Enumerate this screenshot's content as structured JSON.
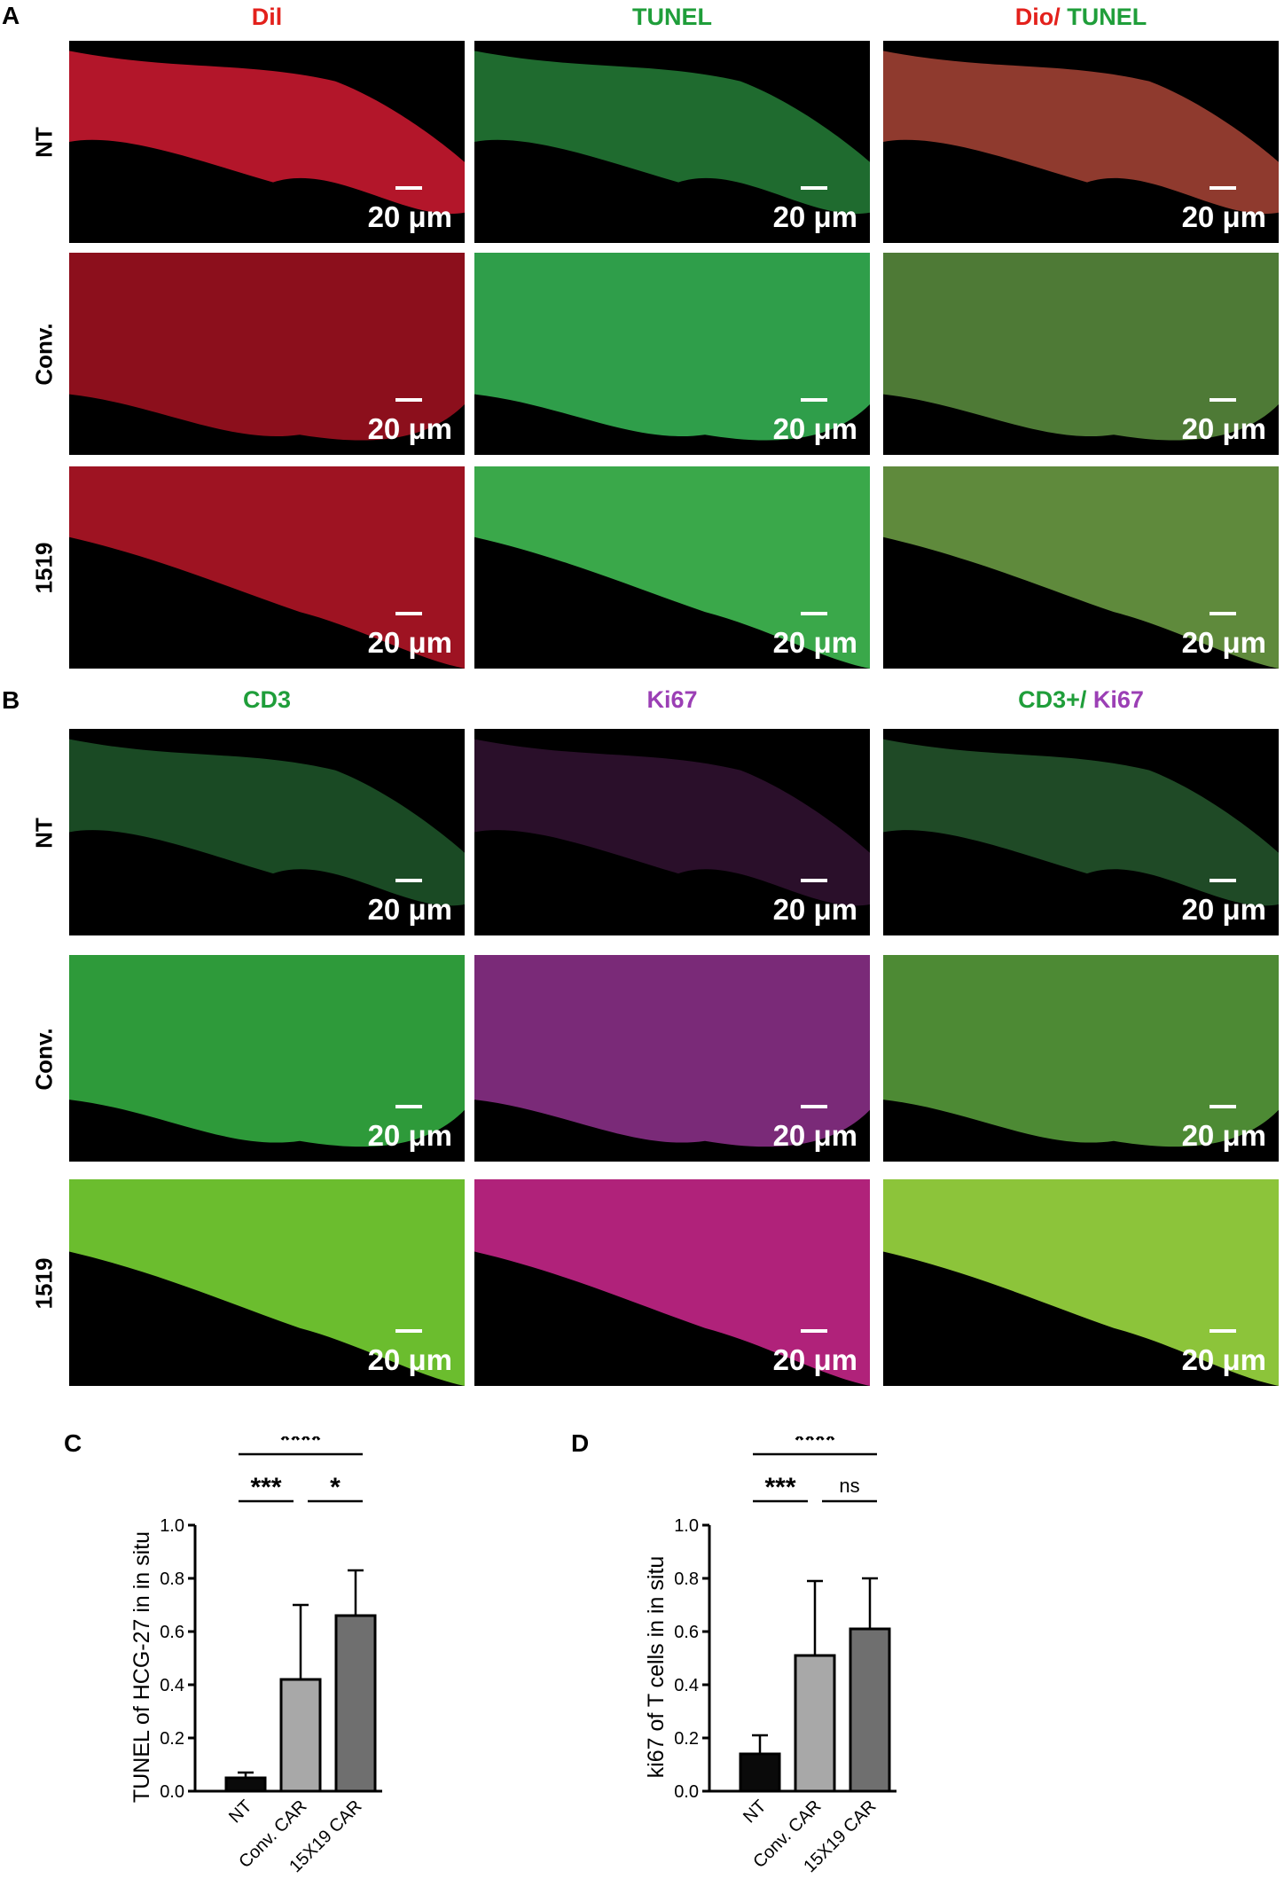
{
  "panel_a": {
    "letter": "A",
    "columns": [
      {
        "segments": [
          {
            "text": "Dil",
            "color": "#e3211c"
          }
        ]
      },
      {
        "segments": [
          {
            "text": "TUNEL",
            "color": "#1f9e3a"
          }
        ]
      },
      {
        "segments": [
          {
            "text": "Dio/ ",
            "color": "#e3211c"
          },
          {
            "text": "TUNEL",
            "color": "#1f9e3a"
          }
        ]
      }
    ],
    "rows": [
      "NT",
      "Conv.",
      "1519"
    ],
    "scale_label": "20 μm"
  },
  "panel_b": {
    "letter": "B",
    "columns": [
      {
        "segments": [
          {
            "text": "CD3",
            "color": "#1f9e3a"
          }
        ]
      },
      {
        "segments": [
          {
            "text": "Ki67",
            "color": "#9b3fb5"
          }
        ]
      },
      {
        "segments": [
          {
            "text": "CD3+/ ",
            "color": "#1f9e3a"
          },
          {
            "text": "Ki67",
            "color": "#9b3fb5"
          }
        ]
      }
    ],
    "rows": [
      "NT",
      "Conv.",
      "1519"
    ],
    "scale_label": "20 μm"
  },
  "chart_data": [
    {
      "panel": "C",
      "type": "bar",
      "categories": [
        "NT",
        "Conv. CAR",
        "15X19 CAR"
      ],
      "values": [
        0.05,
        0.42,
        0.66
      ],
      "errors": [
        0.02,
        0.28,
        0.17
      ],
      "bar_colors": [
        "#0a0a0a",
        "#a8a8a8",
        "#6f6f6f"
      ],
      "ylabel": "TUNEL of HCG-27 in  in situ",
      "ylim": [
        0,
        1.0
      ],
      "yticks": [
        "0.0",
        "0.2",
        "0.4",
        "0.6",
        "0.8",
        "1.0"
      ],
      "comparisons": [
        {
          "from": 1,
          "to": 2,
          "label": "*",
          "level": 0
        },
        {
          "from": 0,
          "to": 1,
          "label": "***",
          "level": 0
        },
        {
          "from": 0,
          "to": 2,
          "label": "****",
          "level": 1
        }
      ]
    },
    {
      "panel": "D",
      "type": "bar",
      "categories": [
        "NT",
        "Conv. CAR",
        "15X19 CAR"
      ],
      "values": [
        0.14,
        0.51,
        0.61
      ],
      "errors": [
        0.07,
        0.28,
        0.19
      ],
      "bar_colors": [
        "#0a0a0a",
        "#a8a8a8",
        "#6f6f6f"
      ],
      "ylabel": "ki67 of T cells  in in situ",
      "ylim": [
        0,
        1.0
      ],
      "yticks": [
        "0.0",
        "0.2",
        "0.4",
        "0.6",
        "0.8",
        "1.0"
      ],
      "comparisons": [
        {
          "from": 1,
          "to": 2,
          "label": "ns",
          "level": 0
        },
        {
          "from": 0,
          "to": 1,
          "label": "***",
          "level": 0
        },
        {
          "from": 0,
          "to": 2,
          "label": "****",
          "level": 1
        }
      ]
    }
  ]
}
